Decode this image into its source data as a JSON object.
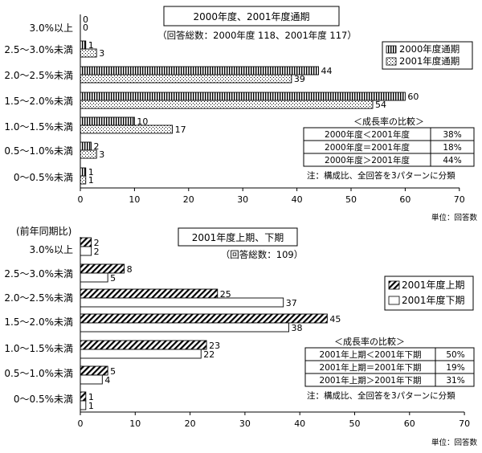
{
  "chart_data": [
    {
      "type": "bar",
      "orientation": "horizontal",
      "title": "2000年度、2001年度通期",
      "subtitle": "（回答総数：2000年度 118、2001年度 117）",
      "categories": [
        "3.0%以上",
        "2.5～3.0%未満",
        "2.0～2.5%未満",
        "1.5～2.0%未満",
        "1.0～1.5%未満",
        "0.5～1.0%未満",
        "0～0.5%未満"
      ],
      "series": [
        {
          "name": "2000年度通期",
          "values": [
            0,
            1,
            44,
            60,
            10,
            2,
            1
          ]
        },
        {
          "name": "2001年度通期",
          "values": [
            0,
            3,
            39,
            54,
            17,
            3,
            1
          ]
        }
      ],
      "xlim": [
        0,
        70
      ],
      "ticks": [
        0,
        10,
        20,
        30,
        40,
        50,
        60,
        70
      ],
      "unit_label": "単位：回答数",
      "legend_position": "right",
      "comparison": {
        "title": "＜成長率の比較＞",
        "rows": [
          {
            "label": "2000年度＜2001年度",
            "value": "38%"
          },
          {
            "label": "2000年度＝2001年度",
            "value": "18%"
          },
          {
            "label": "2000年度＞2001年度",
            "value": "44%"
          }
        ]
      },
      "note": "注：構成比、全回答を3パターンに分類"
    },
    {
      "type": "bar",
      "orientation": "horizontal",
      "title": "2001年度上期、下期",
      "subtitle": "（回答総数：109）",
      "side_label": "(前年同期比)",
      "categories": [
        "3.0%以上",
        "2.5～3.0%未満",
        "2.0～2.5%未満",
        "1.5～2.0%未満",
        "1.0～1.5%未満",
        "0.5～1.0%未満",
        "0～0.5%未満"
      ],
      "series": [
        {
          "name": "2001年度上期",
          "values": [
            2,
            8,
            25,
            45,
            23,
            5,
            1
          ]
        },
        {
          "name": "2001年度下期",
          "values": [
            2,
            5,
            37,
            38,
            22,
            4,
            1
          ]
        }
      ],
      "xlim": [
        0,
        70
      ],
      "ticks": [
        0,
        10,
        20,
        30,
        40,
        50,
        60,
        70
      ],
      "unit_label": "単位：回答数",
      "legend_position": "right",
      "comparison": {
        "title": "＜成長率の比較＞",
        "rows": [
          {
            "label": "2001年上期＜2001年下期",
            "value": "50%"
          },
          {
            "label": "2001年上期＝2001年下期",
            "value": "19%"
          },
          {
            "label": "2001年上期＞2001年下期",
            "value": "31%"
          }
        ]
      },
      "note": "注：構成比、全回答を3パターンに分類"
    }
  ]
}
